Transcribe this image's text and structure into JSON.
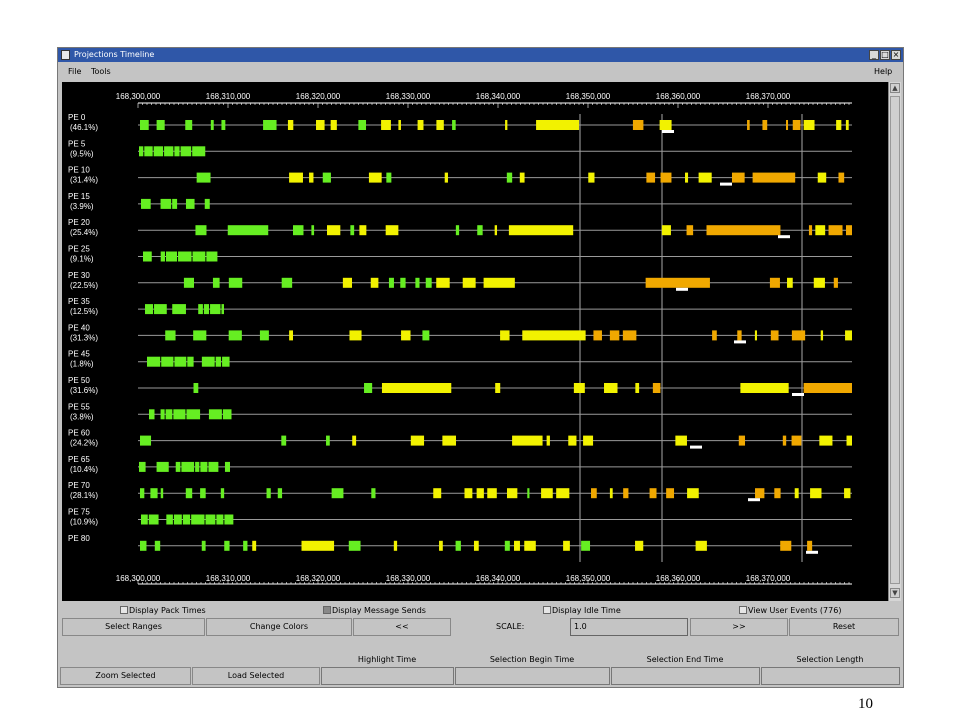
{
  "window": {
    "title": "Projections Timeline",
    "controls": [
      "_",
      "□",
      "×"
    ]
  },
  "menubar": {
    "file": "File",
    "tools": "Tools",
    "help": "Help"
  },
  "timeline": {
    "axis_labels": [
      "168,300,000",
      "168,310,000",
      "168,320,000",
      "168,330,000",
      "168,340,000",
      "168,350,000",
      "168,360,000",
      "168,370,000"
    ],
    "rows": [
      {
        "pe": "PE 0",
        "pct": "(46.1%)"
      },
      {
        "pe": "PE 5",
        "pct": "(9.5%)"
      },
      {
        "pe": "PE 10",
        "pct": "(31.4%)"
      },
      {
        "pe": "PE 15",
        "pct": "(3.9%)"
      },
      {
        "pe": "PE 20",
        "pct": "(25.4%)"
      },
      {
        "pe": "PE 25",
        "pct": "(9.1%)"
      },
      {
        "pe": "PE 30",
        "pct": "(22.5%)"
      },
      {
        "pe": "PE 35",
        "pct": "(12.5%)"
      },
      {
        "pe": "PE 40",
        "pct": "(31.3%)"
      },
      {
        "pe": "PE 45",
        "pct": "(1.8%)"
      },
      {
        "pe": "PE 50",
        "pct": "(31.6%)"
      },
      {
        "pe": "PE 55",
        "pct": "(3.8%)"
      },
      {
        "pe": "PE 60",
        "pct": "(24.2%)"
      },
      {
        "pe": "PE 65",
        "pct": "(10.4%)"
      },
      {
        "pe": "PE 70",
        "pct": "(28.1%)"
      },
      {
        "pe": "PE 75",
        "pct": "(10.9%)"
      },
      {
        "pe": "PE 80",
        "pct": ""
      }
    ]
  },
  "options": {
    "pack_times": "Display Pack Times",
    "message_sends": "Display Message Sends",
    "idle_time": "Display Idle Time",
    "user_events": "View User Events (776)"
  },
  "controls": {
    "select_ranges": "Select Ranges",
    "change_colors": "Change Colors",
    "prev": "<<",
    "scale_label": "SCALE:",
    "scale_value": "1.0",
    "next": ">>",
    "reset": "Reset"
  },
  "info": {
    "highlight_time": "Highlight Time",
    "selection_begin": "Selection Begin Time",
    "selection_end": "Selection End Time",
    "selection_length": "Selection Length"
  },
  "bottom_buttons": {
    "zoom_selected": "Zoom Selected",
    "load_selected": "Load Selected"
  },
  "page_number": "10",
  "colors": {
    "green": "#66ee22",
    "yellow": "#f2f200",
    "orange": "#f0a800",
    "line": "#9a9a9a"
  }
}
